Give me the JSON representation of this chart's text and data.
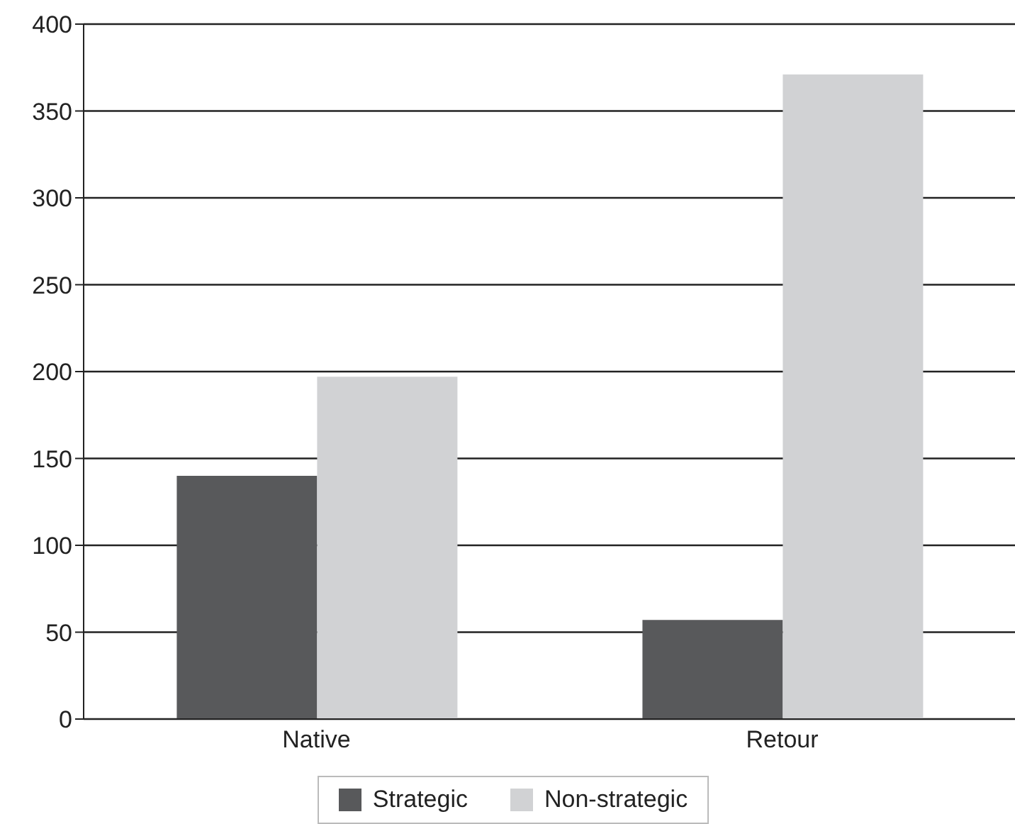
{
  "chart_data": {
    "type": "bar",
    "categories": [
      "Native",
      "Retour"
    ],
    "series": [
      {
        "name": "Strategic",
        "color": "#58595b",
        "values": [
          140,
          57
        ]
      },
      {
        "name": "Non-strategic",
        "color": "#d1d2d4",
        "values": [
          197,
          371
        ]
      }
    ],
    "ylim": [
      0,
      400
    ],
    "yticks": [
      0,
      50,
      100,
      150,
      200,
      250,
      300,
      350,
      400
    ],
    "grid": "y",
    "legend": "bottom"
  }
}
